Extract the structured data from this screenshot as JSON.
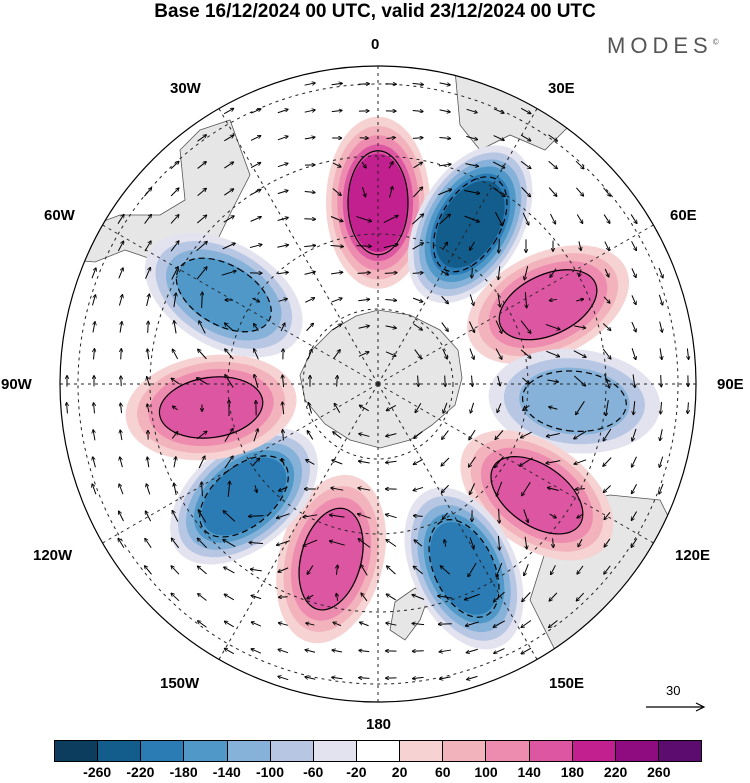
{
  "title": "Base 16/12/2024 00 UTC, valid 23/12/2024 00 UTC",
  "brand": "MODES",
  "brand_mark": "©",
  "longitude_labels": {
    "lon_0": "0",
    "lon_30e": "30E",
    "lon_60e": "60E",
    "lon_90e": "90E",
    "lon_120e": "120E",
    "lon_150e": "150E",
    "lon_180": "180",
    "lon_150w": "150W",
    "lon_120w": "120W",
    "lon_90w": "90W",
    "lon_60w": "60W",
    "lon_30w": "30W"
  },
  "reference_vector": {
    "label": "30"
  },
  "colorbar": {
    "colors": [
      "#0c3d5e",
      "#135d8c",
      "#2b7bb5",
      "#4f98c8",
      "#86b1d8",
      "#b7c6e3",
      "#e3e3f0",
      "#ffffff",
      "#f6d2d2",
      "#f2b3bd",
      "#ee8cb0",
      "#dc56a2",
      "#c2208f",
      "#8e0c80",
      "#5c0b6e"
    ],
    "tick_labels": [
      "-260",
      "-220",
      "-180",
      "-140",
      "-100",
      "-60",
      "-20",
      "20",
      "60",
      "100",
      "140",
      "180",
      "220",
      "260"
    ]
  },
  "anomalies": [
    {
      "lon": 0,
      "rad": 0.57,
      "value": 200
    },
    {
      "lon": 30,
      "rad": 0.58,
      "value": -240
    },
    {
      "lon": 65,
      "rad": 0.59,
      "value": 140
    },
    {
      "lon": 95,
      "rad": 0.62,
      "value": -100
    },
    {
      "lon": 125,
      "rad": 0.61,
      "value": 160
    },
    {
      "lon": 155,
      "rad": 0.64,
      "value": -200
    },
    {
      "lon": 195,
      "rad": 0.57,
      "value": 150
    },
    {
      "lon": 230,
      "rad": 0.55,
      "value": -200
    },
    {
      "lon": 262,
      "rad": 0.53,
      "value": 160
    },
    {
      "lon": 300,
      "rad": 0.56,
      "value": -140
    }
  ]
}
